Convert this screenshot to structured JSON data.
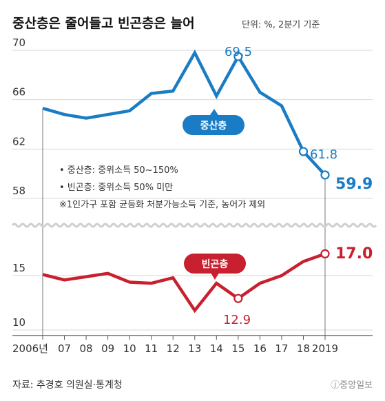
{
  "header": {
    "title": "중산층은 줄어들고 빈곤층은 늘어",
    "unit": "단위: %, 2분기 기준"
  },
  "chart_data": {
    "type": "line",
    "categories": [
      "2006년",
      "07",
      "08",
      "09",
      "10",
      "11",
      "12",
      "13",
      "14",
      "15",
      "16",
      "17",
      "18",
      "2019"
    ],
    "panels": [
      {
        "name": "중산층",
        "ylim": [
          57.5,
          71
        ],
        "yticks": [
          "70",
          "66",
          "62",
          "58"
        ],
        "values": [
          65.3,
          64.8,
          64.5,
          64.8,
          65.1,
          66.5,
          66.7,
          69.8,
          66.3,
          69.5,
          66.6,
          65.5,
          61.8,
          59.9
        ],
        "color": "#1a7cc4"
      },
      {
        "name": "빈곤층",
        "ylim": [
          10,
          19
        ],
        "yticks": [
          "15",
          "10"
        ],
        "values": [
          15.1,
          14.6,
          14.9,
          15.2,
          14.4,
          14.3,
          14.8,
          11.8,
          14.3,
          12.9,
          14.3,
          15.0,
          16.3,
          17.0
        ],
        "color": "#c8202e"
      }
    ],
    "labels": {
      "middle_peak": "69.5",
      "middle_2018": "61.8",
      "middle_2019": "59.9",
      "poor_2015": "12.9",
      "poor_2019": "17.0",
      "middle_tag": "중산층",
      "poor_tag": "빈곤층"
    }
  },
  "notes": [
    "• 중산층: 중위소득 50~150%",
    "• 빈곤층: 중위소득 50% 미만",
    "※1인가구 포함 균등화 처분가능소득 기준, 농어가 제외"
  ],
  "footer": {
    "source": "자료: 추경호 의원실·통계청",
    "logo": "ⓙ중앙일보"
  },
  "colors": {
    "middle": "#1a7cc4",
    "poor": "#c8202e",
    "grid": "#d7d7d7",
    "axis": "#555555"
  }
}
